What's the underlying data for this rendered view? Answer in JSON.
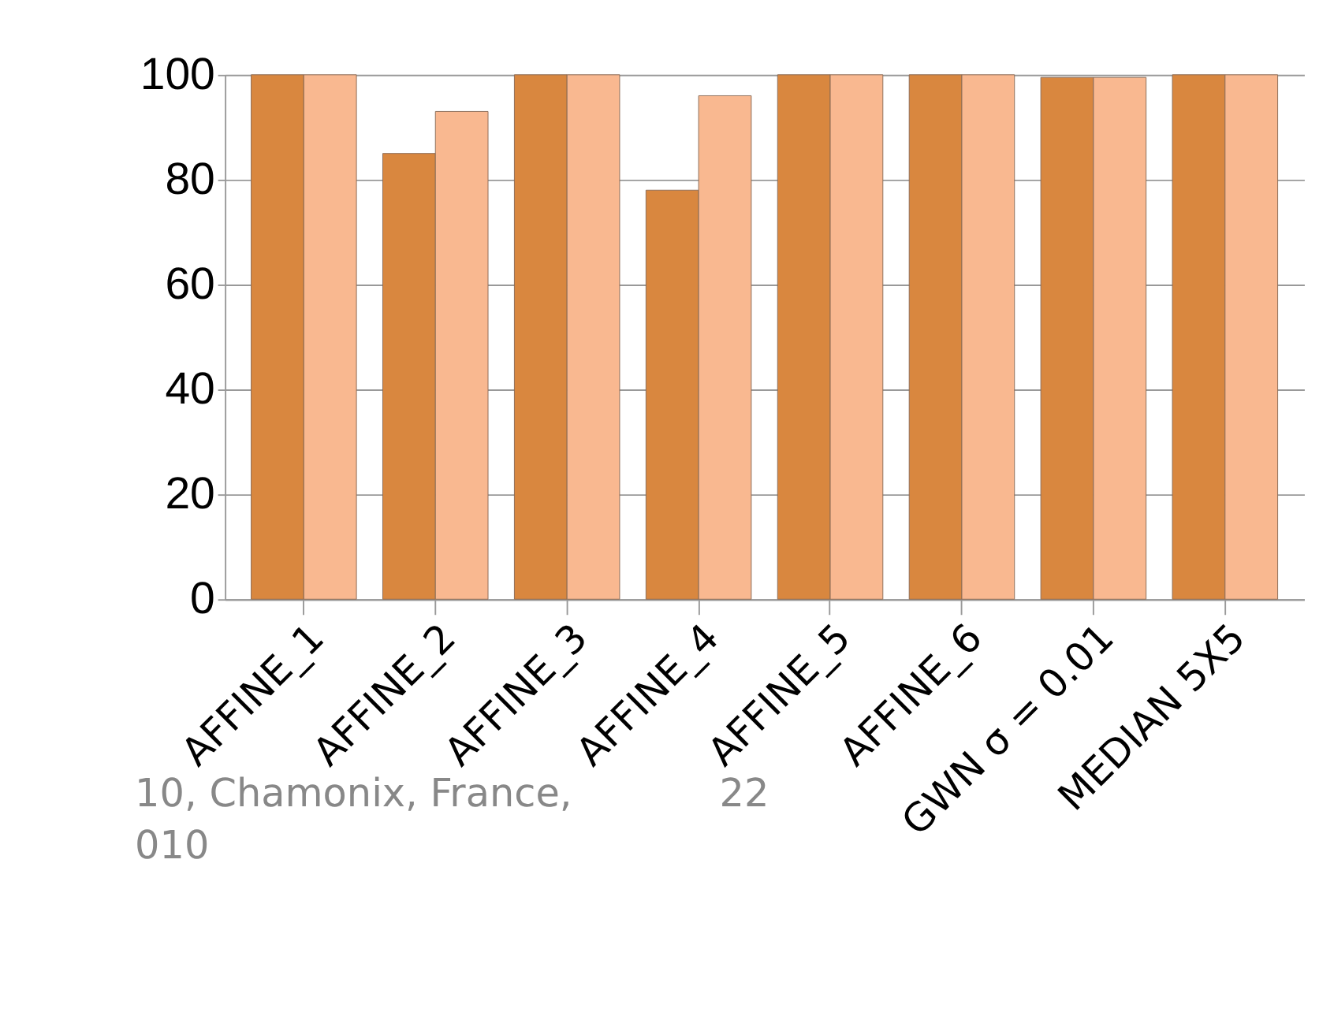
{
  "chart_data": {
    "type": "bar",
    "categories": [
      "AFFINE_1",
      "AFFINE_2",
      "AFFINE_3",
      "AFFINE_4",
      "AFFINE_5",
      "AFFINE_6",
      "GWN σ = 0.01",
      "MEDIAN 5X5"
    ],
    "series": [
      {
        "color": "#d9873f",
        "values": [
          100,
          85,
          100,
          78,
          100,
          100,
          99.5,
          100
        ]
      },
      {
        "color": "#f9b890",
        "values": [
          100,
          93,
          100,
          96,
          100,
          100,
          99.5,
          100
        ]
      }
    ],
    "ylim": [
      0,
      100
    ],
    "yticks": [
      0,
      20,
      40,
      60,
      80,
      100
    ],
    "grid": "y",
    "legend": false,
    "annotations": [
      "10, Chamonix,  France,",
      "22",
      "010"
    ]
  }
}
